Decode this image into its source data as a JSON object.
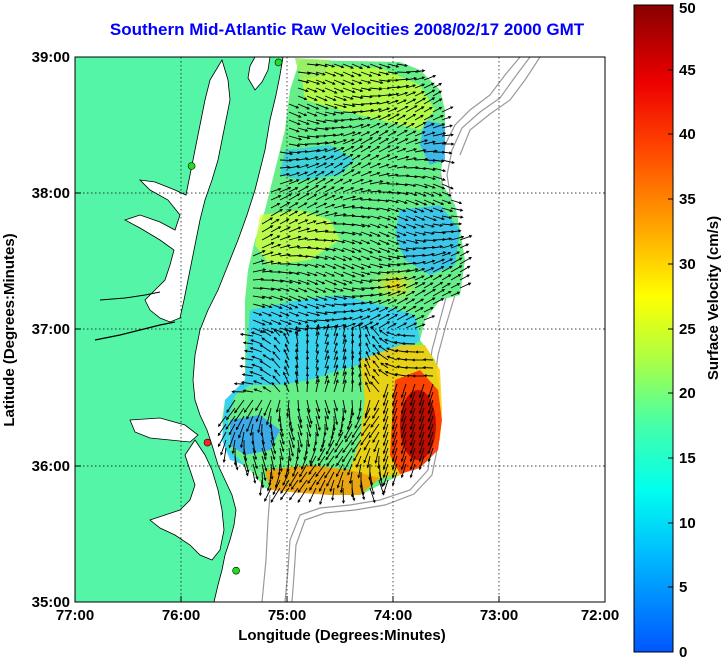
{
  "title": "Southern Mid-Atlantic Raw Velocities 2008/02/17 2000 GMT",
  "x_axis": {
    "label": "Longitude (Degrees:Minutes)",
    "ticks": [
      "77:00",
      "76:00",
      "75:00",
      "74:00",
      "73:00",
      "72:00"
    ],
    "tick_values": [
      -77,
      -76,
      -75,
      -74,
      -73,
      -72
    ]
  },
  "y_axis": {
    "label": "Latitude (Degrees:Minutes)",
    "ticks": [
      "39:00",
      "38:00",
      "37:00",
      "36:00",
      "35:00"
    ],
    "tick_values": [
      39,
      38,
      37,
      36,
      35
    ]
  },
  "colorbar": {
    "label": "Surface Velocity (cm/s)",
    "ticks": [
      "0",
      "5",
      "10",
      "15",
      "20",
      "25",
      "30",
      "35",
      "40",
      "45",
      "50"
    ],
    "range": [
      0,
      50
    ],
    "colors": [
      "#0055ff",
      "#00ccff",
      "#33ffcc",
      "#ccff33",
      "#ffcc00",
      "#ff6600",
      "#ff0000",
      "#880000"
    ]
  },
  "colors": {
    "land": "#55f5a8",
    "water": "#ffffff",
    "coast": "#000000",
    "bathymetry": "#999999",
    "grid": "#000000",
    "site_green": "#22dd22",
    "site_red": "#ff2222"
  },
  "hf_radar_sites": [
    {
      "lon": -75.08,
      "lat": 38.96,
      "status": "green"
    },
    {
      "lon": -75.9,
      "lat": 38.2,
      "status": "green"
    },
    {
      "lon": -75.75,
      "lat": 36.17,
      "status": "red"
    },
    {
      "lon": -75.48,
      "lat": 35.23,
      "status": "green"
    }
  ]
}
